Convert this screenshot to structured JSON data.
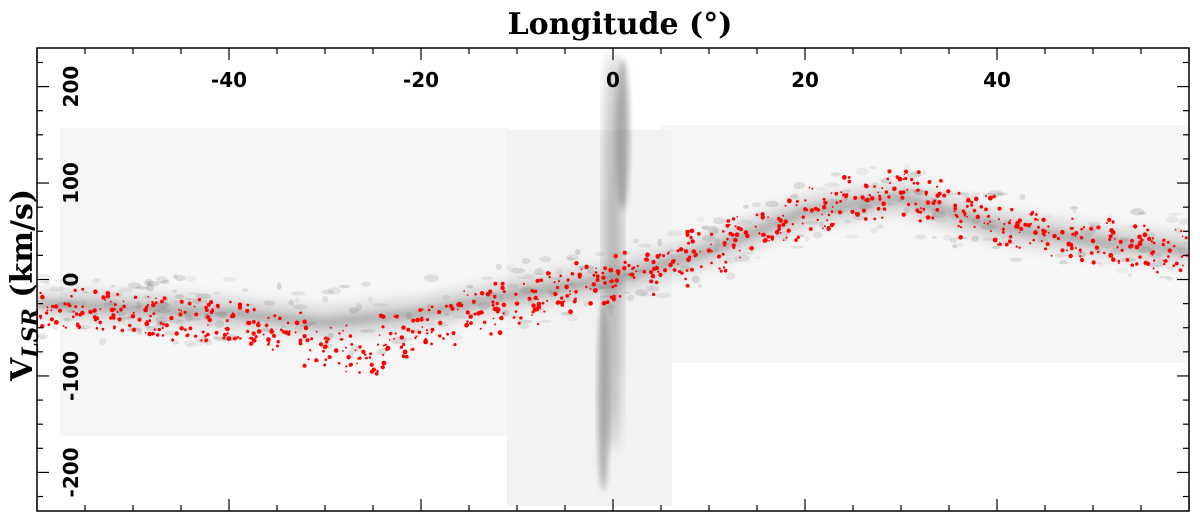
{
  "chart_data": {
    "type": "scatter",
    "title": "Longitude (°)",
    "ylabel": "V",
    "ylabel_subscript": "LSR",
    "ylabel_unit": " (km/s)",
    "xlim": [
      -60,
      60
    ],
    "ylim": [
      -240,
      240
    ],
    "x_ticks": [
      -40,
      -20,
      0,
      20,
      40
    ],
    "x_tick_labels": [
      "-40",
      "-20",
      "0",
      "20",
      "40"
    ],
    "y_ticks": [
      200,
      100,
      0,
      -100,
      -200
    ],
    "y_tick_labels": [
      "200",
      "100",
      "0",
      "-100",
      "-200"
    ],
    "grid": false,
    "colors": {
      "emission": "#7a7a7a",
      "detections": "#ff0000"
    },
    "emission_ridge": {
      "x": [
        -60,
        -50,
        -40,
        -30,
        -20,
        -10,
        0,
        10,
        20,
        30,
        40,
        50,
        60
      ],
      "y": [
        -25,
        -30,
        -35,
        -45,
        -35,
        -15,
        0,
        30,
        70,
        85,
        55,
        40,
        30
      ]
    },
    "series": [
      {
        "x": [
          -58,
          -54,
          -50,
          -46,
          -42,
          -38,
          -34,
          -30,
          -26,
          -22,
          -18,
          -14,
          -10,
          -6,
          -2,
          2,
          6,
          10,
          14,
          18,
          22,
          26,
          30,
          34,
          38,
          42,
          46,
          50,
          54,
          58
        ],
        "y": [
          -28,
          -32,
          -38,
          -40,
          -42,
          -45,
          -55,
          -70,
          -75,
          -60,
          -45,
          -35,
          -25,
          -15,
          -5,
          5,
          15,
          30,
          45,
          60,
          75,
          85,
          90,
          80,
          65,
          55,
          45,
          40,
          35,
          30
        ]
      }
    ]
  }
}
